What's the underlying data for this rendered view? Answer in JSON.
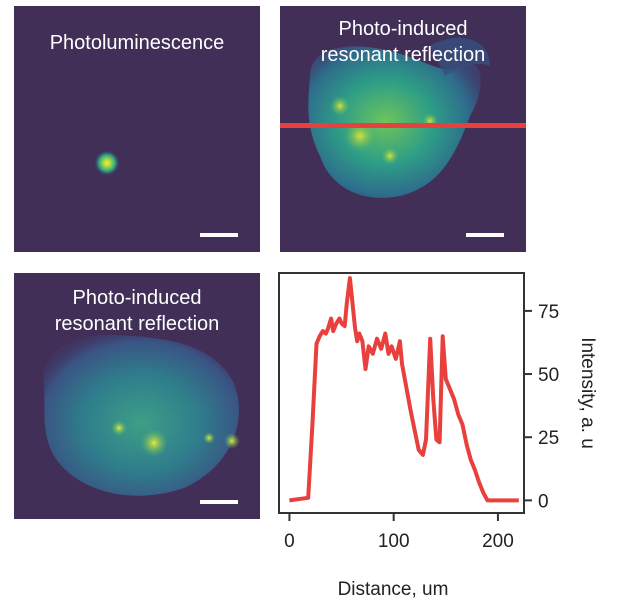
{
  "panels": {
    "pl_label": "Photoluminescence",
    "pirr_top_label": "Photo-induced\nresonant reflection",
    "pirr_bottom_label": "Photo-induced\nresonant reflection"
  },
  "colors": {
    "image_background": "#412f58",
    "line_color": "#e8403c",
    "scale_bar": "#ffffff"
  },
  "chart_data": {
    "type": "line",
    "title": "",
    "xlabel": "Distance, um",
    "ylabel": "Intensity, a. u",
    "xlim": [
      -10,
      225
    ],
    "ylim": [
      -5,
      90
    ],
    "xticks": [
      0,
      100,
      200
    ],
    "yticks": [
      0,
      25,
      50,
      75
    ],
    "y_axis_side": "right",
    "legend": "none",
    "grid": false,
    "series": [
      {
        "x": [
          0,
          18,
          22,
          26,
          29,
          32,
          35,
          37,
          40,
          42,
          45,
          48,
          50,
          53,
          55,
          58,
          60,
          63,
          65,
          67,
          70,
          73,
          76,
          80,
          84,
          88,
          92,
          95,
          98,
          102,
          106,
          108,
          112,
          116,
          120,
          124,
          128,
          131,
          135,
          138,
          141,
          144,
          147,
          150,
          154,
          158,
          162,
          166,
          170,
          174,
          178,
          182,
          186,
          190,
          200,
          220
        ],
        "y": [
          0,
          1,
          30,
          62,
          65,
          67,
          66,
          68,
          72,
          67,
          70,
          72,
          70,
          69,
          78,
          88,
          80,
          68,
          63,
          66,
          63,
          52,
          61,
          58,
          64,
          60,
          66,
          58,
          61,
          56,
          63,
          54,
          45,
          36,
          28,
          20,
          18,
          24,
          64,
          40,
          24,
          23,
          65,
          48,
          44,
          40,
          34,
          30,
          22,
          16,
          12,
          7,
          3,
          0,
          0,
          0
        ]
      }
    ]
  }
}
